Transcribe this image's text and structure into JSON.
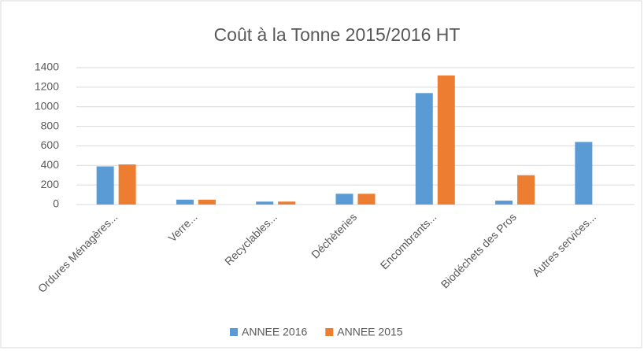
{
  "chart_data": {
    "type": "bar",
    "title": "Coût à la Tonne 2015/2016 HT",
    "categories": [
      "Ordures Ménagères...",
      "Verre...",
      "Recyclables...",
      "Déchèteries",
      "Encombrants...",
      "Biodéchets des Pros",
      "Autres services..."
    ],
    "series": [
      {
        "name": "ANNEE 2016",
        "color": "#5b9bd5",
        "values": [
          390,
          50,
          30,
          110,
          1140,
          40,
          640
        ]
      },
      {
        "name": "ANNEE 2015",
        "color": "#ed7d31",
        "values": [
          410,
          50,
          30,
          110,
          1320,
          300,
          null
        ]
      }
    ],
    "ylim": [
      0,
      1400
    ],
    "yticks": [
      0,
      200,
      400,
      600,
      800,
      1000,
      1200,
      1400
    ],
    "grid": true,
    "legend": "bottom"
  }
}
